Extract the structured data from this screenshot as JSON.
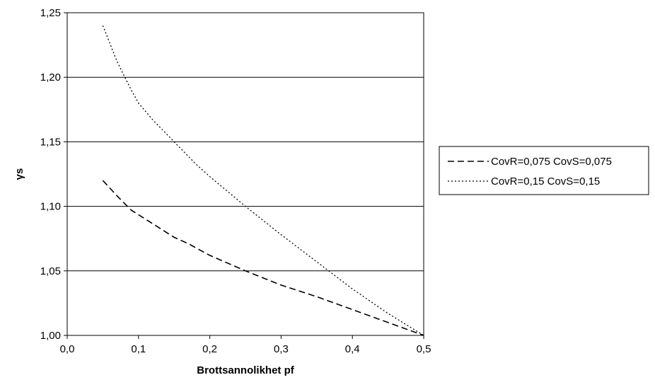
{
  "chart_data": {
    "type": "line",
    "title": "",
    "xlabel": "Brottsannolikhet pf",
    "ylabel": "γs",
    "xlim": [
      0.0,
      0.5
    ],
    "ylim": [
      1.0,
      1.25
    ],
    "grid": "horizontal",
    "legend_position": "right",
    "x_ticks": [
      "0,0",
      "0,1",
      "0,2",
      "0,3",
      "0,4",
      "0,5"
    ],
    "y_ticks": [
      "1,00",
      "1,05",
      "1,10",
      "1,15",
      "1,20",
      "1,25"
    ],
    "series": [
      {
        "name": "CovR=0,075 CovS=0,075",
        "line_style": "dashed",
        "color": "#000000",
        "x": [
          0.05,
          0.07,
          0.09,
          0.11,
          0.13,
          0.15,
          0.17,
          0.2,
          0.25,
          0.3,
          0.35,
          0.4,
          0.45,
          0.5
        ],
        "y": [
          1.12,
          1.108,
          1.097,
          1.09,
          1.083,
          1.076,
          1.071,
          1.062,
          1.05,
          1.039,
          1.03,
          1.02,
          1.01,
          1.0
        ]
      },
      {
        "name": "CovR=0,15 CovS=0,15",
        "line_style": "dotted",
        "color": "#000000",
        "x": [
          0.05,
          0.07,
          0.09,
          0.1,
          0.12,
          0.15,
          0.18,
          0.2,
          0.25,
          0.3,
          0.35,
          0.4,
          0.45,
          0.5
        ],
        "y": [
          1.24,
          1.212,
          1.19,
          1.18,
          1.167,
          1.15,
          1.133,
          1.123,
          1.1,
          1.078,
          1.057,
          1.036,
          1.017,
          1.0
        ]
      }
    ]
  }
}
